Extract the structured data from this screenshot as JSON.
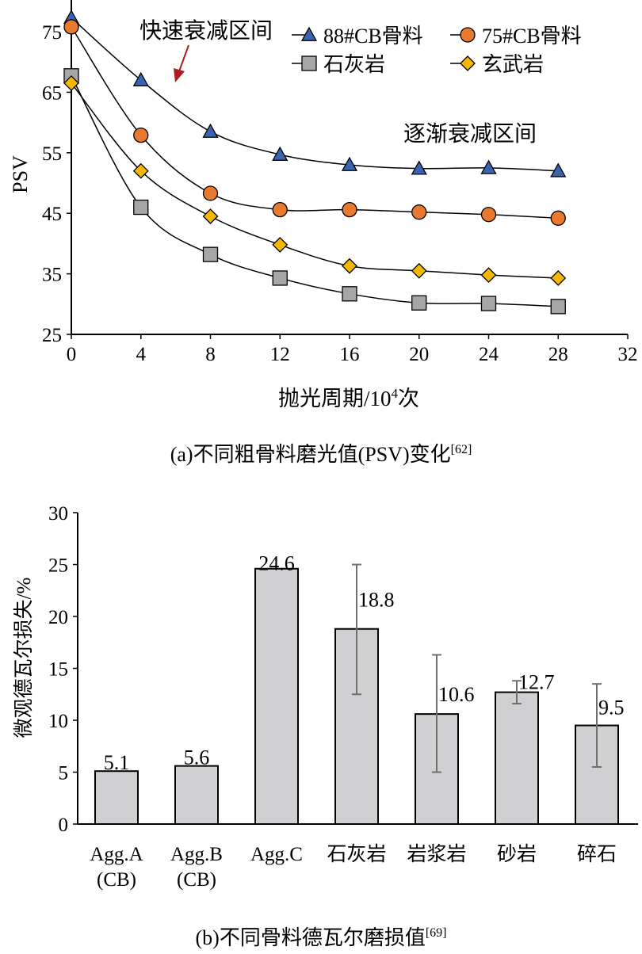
{
  "chart_data": [
    {
      "type": "line",
      "xlabel": "抛光周期/10⁴次",
      "xlabel_main": "抛光周期/10",
      "xlabel_sup": "4",
      "xlabel_tail": "次",
      "ylabel": "PSV",
      "xlim": [
        0,
        32
      ],
      "ylim": [
        25,
        75
      ],
      "xticks": [
        0,
        4,
        8,
        12,
        16,
        20,
        24,
        28,
        32
      ],
      "yticks": [
        25,
        35,
        45,
        55,
        65,
        75
      ],
      "legend_placement": "top-right",
      "annotations": [
        "快速衰减区间",
        "逐渐衰减区间"
      ],
      "arrow_color": "#b01c24",
      "caption": "(a)不同粗骨料磨光值(PSV)变化",
      "caption_ref": "[62]",
      "x": [
        0,
        4,
        8,
        12,
        16,
        20,
        24,
        28
      ],
      "series": [
        {
          "name": "88#CB骨料",
          "marker": "triangle",
          "color": "#3a64b0",
          "values": [
            77.3,
            67,
            58.5,
            54.7,
            53,
            52.4,
            52.5,
            52
          ]
        },
        {
          "name": "75#CB骨料",
          "marker": "circle",
          "color": "#e87a30",
          "values": [
            75.8,
            57.9,
            48.3,
            45.6,
            45.6,
            45.2,
            44.8,
            44.2
          ]
        },
        {
          "name": "石灰岩",
          "marker": "square",
          "color": "#a6a6a6",
          "values": [
            67.7,
            46,
            38.2,
            34.3,
            31.7,
            30.2,
            30.1,
            29.6
          ]
        },
        {
          "name": "玄武岩",
          "marker": "diamond",
          "color": "#f5b800",
          "values": [
            66.5,
            52,
            44.5,
            39.8,
            36.3,
            35.5,
            34.8,
            34.3
          ]
        }
      ]
    },
    {
      "type": "bar",
      "ylabel": "微观德瓦尔损失/%",
      "ylim": [
        0,
        30
      ],
      "yticks": [
        0,
        5,
        10,
        15,
        20,
        25,
        30
      ],
      "categories": [
        [
          "Agg.A",
          "(CB)"
        ],
        [
          "Agg.B",
          "(CB)"
        ],
        [
          "Agg.C"
        ],
        [
          "石灰岩"
        ],
        [
          "岩浆岩"
        ],
        [
          "砂岩"
        ],
        [
          "碎石"
        ]
      ],
      "values": [
        5.1,
        5.6,
        24.6,
        18.8,
        10.6,
        12.7,
        9.5
      ],
      "data_labels": [
        "5.1",
        "5.6",
        "24.6",
        "18.8",
        "10.6",
        "12.7",
        "9.5"
      ],
      "error_low": [
        null,
        null,
        null,
        12.5,
        5.0,
        11.6,
        5.5
      ],
      "error_high": [
        null,
        null,
        null,
        25.0,
        16.3,
        13.8,
        13.5
      ],
      "bar_color": "#d0cfd1",
      "caption": "(b)不同骨料德瓦尔磨损值",
      "caption_ref": "[69]"
    }
  ]
}
